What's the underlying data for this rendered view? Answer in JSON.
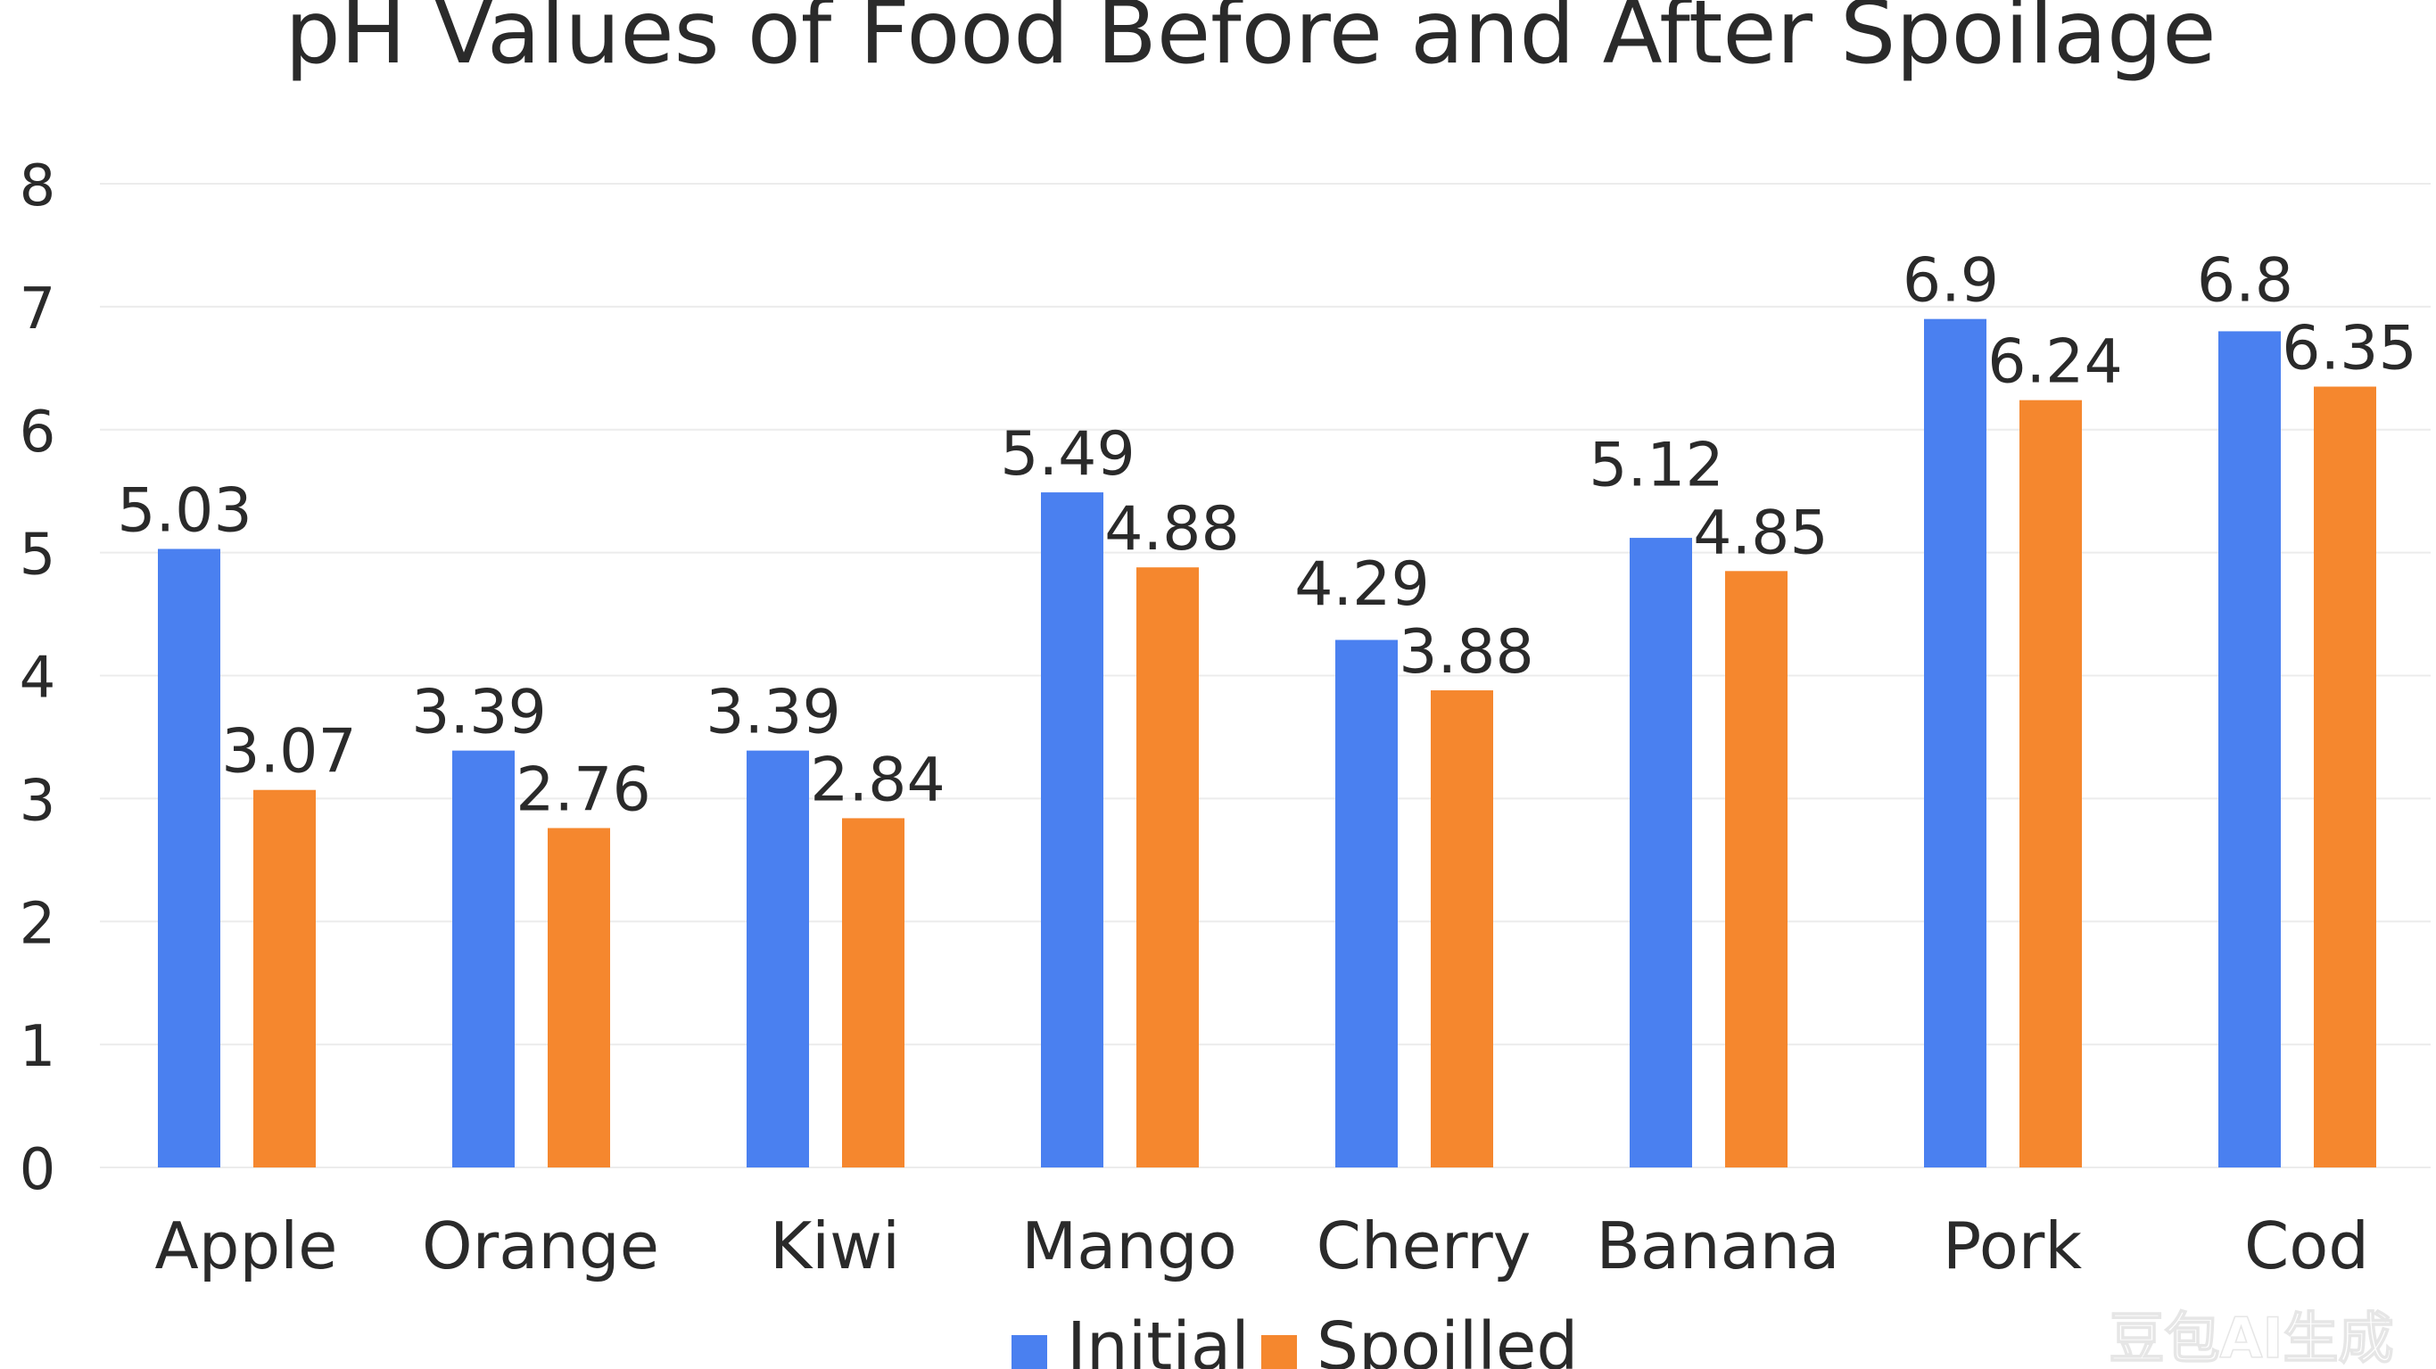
{
  "chart_data": {
    "type": "bar",
    "title": "pH Values of Food Before and After Spoilage",
    "xlabel": "",
    "ylabel": "",
    "ylim": [
      0,
      8
    ],
    "yticks": [
      0,
      1,
      2,
      3,
      4,
      5,
      6,
      7,
      8
    ],
    "grid": true,
    "legend_position": "bottom-center",
    "categories": [
      "Apple",
      "Orange",
      "Kiwi",
      "Mango",
      "Cherry",
      "Banana",
      "Pork",
      "Cod"
    ],
    "series": [
      {
        "name": "Initial",
        "color": "#4a80f0",
        "values": [
          5.03,
          3.39,
          3.39,
          5.49,
          4.29,
          5.12,
          6.9,
          6.8
        ],
        "labels": [
          "5.03",
          "3.39",
          "3.39",
          "5.49",
          "4.29",
          "5.12",
          "6.9",
          "6.8"
        ]
      },
      {
        "name": "Spoilled",
        "color": "#f5872e",
        "values": [
          3.07,
          2.76,
          2.84,
          4.88,
          3.88,
          4.85,
          6.24,
          6.35
        ],
        "labels": [
          "3.07",
          "2.76",
          "2.84",
          "4.88",
          "3.88",
          "4.85",
          "6.24",
          "6.35"
        ]
      }
    ]
  },
  "watermark": "豆包AI生成"
}
